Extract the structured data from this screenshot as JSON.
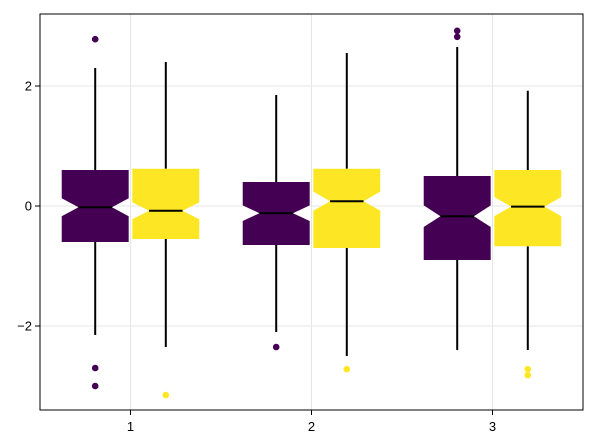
{
  "chart_data": {
    "type": "boxplot",
    "notched": true,
    "grid": true,
    "legend": "none",
    "title": "",
    "xlabel": "",
    "ylabel": "",
    "categories": [
      "1",
      "2",
      "3"
    ],
    "xlim": [
      0.5,
      3.5
    ],
    "ylim": [
      -3.4,
      3.2
    ],
    "yticks": [
      -2,
      0,
      2
    ],
    "yticklabels": [
      "−2",
      "0",
      "2"
    ],
    "series": [
      {
        "color": "#440154",
        "boxes": [
          {
            "category": "1",
            "whisker_low": -2.15,
            "q1": -0.6,
            "median": -0.02,
            "q3": 0.6,
            "whisker_high": 2.3,
            "notch_low": -0.17,
            "notch_high": 0.13,
            "outliers": [
              2.78,
              -2.7,
              -3.0
            ]
          },
          {
            "category": "2",
            "whisker_low": -2.1,
            "q1": -0.65,
            "median": -0.12,
            "q3": 0.4,
            "whisker_high": 1.85,
            "notch_low": -0.25,
            "notch_high": 0.01,
            "outliers": [
              -2.35
            ]
          },
          {
            "category": "3",
            "whisker_low": -2.4,
            "q1": -0.9,
            "median": -0.17,
            "q3": 0.5,
            "whisker_high": 2.65,
            "notch_low": -0.35,
            "notch_high": 0.01,
            "outliers": [
              2.92,
              2.82
            ]
          }
        ]
      },
      {
        "color": "#fde725",
        "boxes": [
          {
            "category": "1",
            "whisker_low": -2.35,
            "q1": -0.55,
            "median": -0.08,
            "q3": 0.62,
            "whisker_high": 2.4,
            "notch_low": -0.22,
            "notch_high": 0.06,
            "outliers": [
              -3.15
            ]
          },
          {
            "category": "2",
            "whisker_low": -2.5,
            "q1": -0.7,
            "median": 0.08,
            "q3": 0.62,
            "whisker_high": 2.55,
            "notch_low": -0.08,
            "notch_high": 0.24,
            "outliers": [
              -2.72
            ]
          },
          {
            "category": "3",
            "whisker_low": -2.4,
            "q1": -0.67,
            "median": -0.01,
            "q3": 0.6,
            "whisker_high": 1.92,
            "notch_low": -0.17,
            "notch_high": 0.15,
            "outliers": [
              -2.72,
              -2.82
            ]
          }
        ]
      }
    ]
  }
}
